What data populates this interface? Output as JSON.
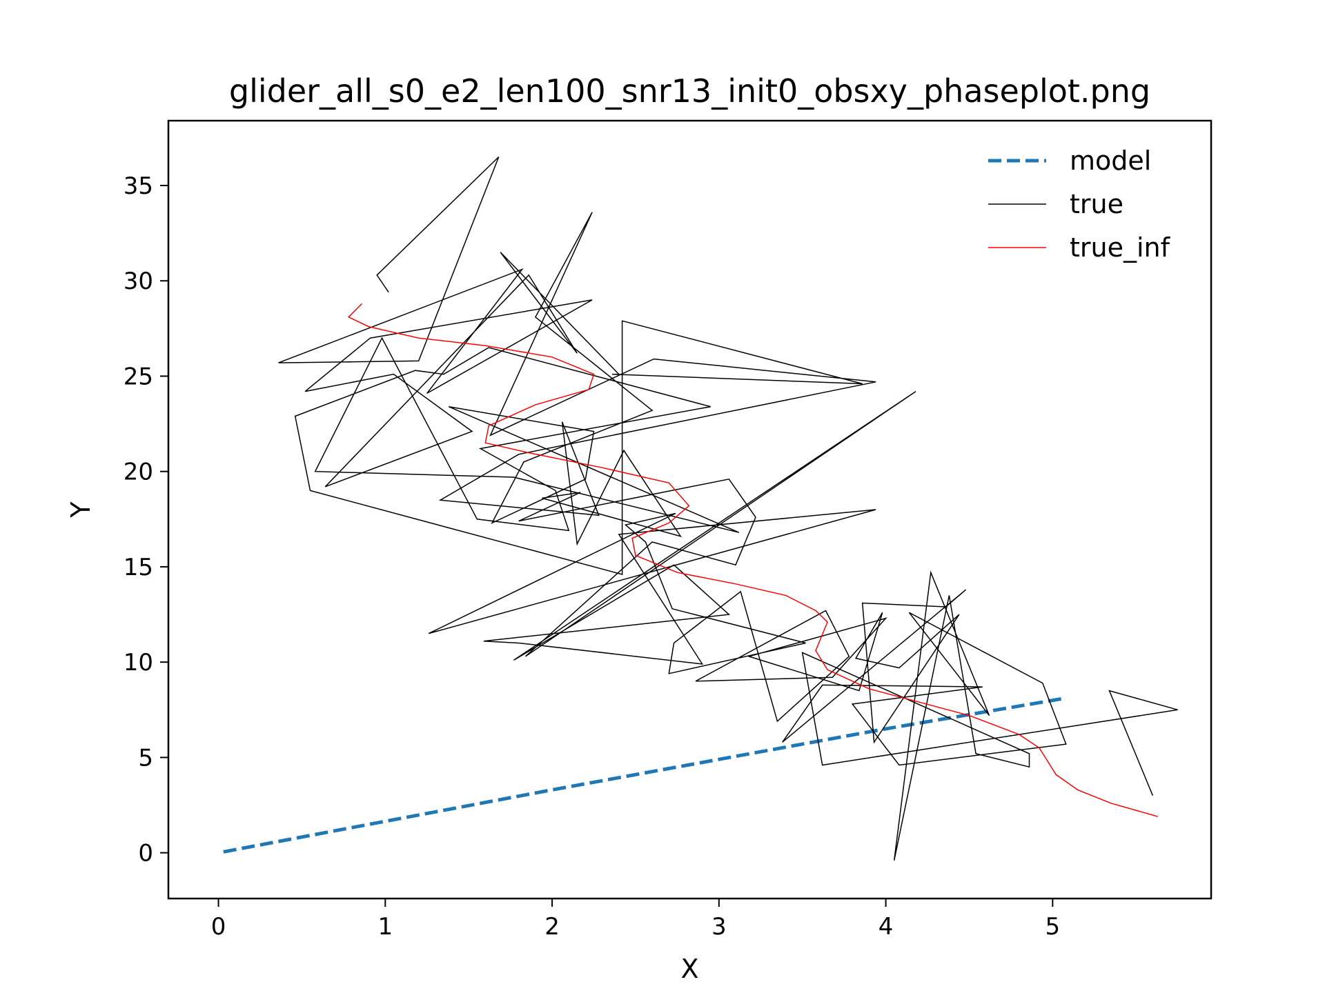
{
  "chart_data": {
    "type": "line",
    "title": "glider_all_s0_e2_len100_snr13_init0_obsxy_phaseplot.png",
    "xlabel": "X",
    "ylabel": "Y",
    "xlim": [
      -0.3,
      5.95
    ],
    "ylim": [
      -2.4,
      38.4
    ],
    "xticks": [
      0,
      1,
      2,
      3,
      4,
      5
    ],
    "yticks": [
      0,
      5,
      10,
      15,
      20,
      25,
      30,
      35
    ],
    "grid": false,
    "legend": {
      "position": "top-right",
      "entries": [
        "model",
        "true",
        "true_inf"
      ]
    },
    "series": [
      {
        "name": "model",
        "color": "#1f77b4",
        "dash": "dashed",
        "x": [
          0.03,
          1.0,
          2.0,
          3.0,
          4.0,
          5.07
        ],
        "y": [
          0.05,
          1.65,
          3.3,
          4.9,
          6.5,
          8.1
        ]
      },
      {
        "name": "true",
        "color": "#000000",
        "dash": "solid",
        "x": [
          1.02,
          0.95,
          1.68,
          1.2,
          0.36,
          1.82,
          1.25,
          2.24,
          0.91,
          0.52,
          1.05,
          1.52,
          0.64,
          1.86,
          2.15,
          1.69,
          2.4,
          2.36,
          3.86,
          2.42,
          2.42,
          0.55,
          0.46,
          1.18,
          1.35,
          1.62,
          2.95,
          1.57,
          2.02,
          2.1,
          1.55,
          0.98,
          0.58,
          1.77,
          3.12,
          1.38,
          2.25,
          2.2,
          1.64,
          1.83,
          2.6,
          1.9,
          2.24,
          1.63,
          2.61,
          3.94,
          1.8,
          1.33,
          2.28,
          2.06,
          2.15,
          2.43,
          2.77,
          1.94,
          2.17,
          1.8,
          3.06,
          3.22,
          3.1,
          2.6,
          1.84,
          4.18,
          1.77,
          2.73,
          3.06,
          1.59,
          1.8,
          2.9,
          2.4,
          3.94,
          1.26,
          2.74,
          2.44,
          2.56,
          2.72,
          3.52,
          2.7,
          2.73,
          3.13,
          3.35,
          3.78,
          3.64,
          2.86,
          3.68,
          4.0,
          3.18,
          3.84,
          3.98,
          3.82,
          4.08,
          4.44,
          3.93,
          3.86,
          4.36,
          4.48,
          3.38,
          3.62,
          4.58,
          3.8,
          4.08,
          5.08,
          4.94,
          4.14,
          4.62,
          4.27,
          4.05,
          4.38,
          4.54,
          4.86,
          4.86,
          3.5,
          3.62,
          5.75,
          5.34,
          5.6
        ],
        "y": [
          29.4,
          30.3,
          36.5,
          25.8,
          25.7,
          30.6,
          24.1,
          29.0,
          27.0,
          24.2,
          25.1,
          22.1,
          19.2,
          30.3,
          26.2,
          31.5,
          25.1,
          25.1,
          24.6,
          27.9,
          14.6,
          19.0,
          22.9,
          25.3,
          25.1,
          26.5,
          23.4,
          21.2,
          19.0,
          16.9,
          17.5,
          27.0,
          20.0,
          19.7,
          16.8,
          23.4,
          22.1,
          19.6,
          17.3,
          20.5,
          23.2,
          28.1,
          33.6,
          21.9,
          25.9,
          24.7,
          20.9,
          18.5,
          17.7,
          22.6,
          16.2,
          21.1,
          16.6,
          18.6,
          18.9,
          17.4,
          19.6,
          17.6,
          15.1,
          16.3,
          10.3,
          24.2,
          10.1,
          15.1,
          12.5,
          11.1,
          11.0,
          9.9,
          16.7,
          18.0,
          11.5,
          17.8,
          17.2,
          16.3,
          12.8,
          11.0,
          9.4,
          11.0,
          13.7,
          6.9,
          10.3,
          12.7,
          9.0,
          9.2,
          12.3,
          10.3,
          8.5,
          12.6,
          10.2,
          9.7,
          12.5,
          5.8,
          13.1,
          12.9,
          13.8,
          5.8,
          8.8,
          8.7,
          7.8,
          4.6,
          5.7,
          8.9,
          12.6,
          7.2,
          14.7,
          -0.4,
          13.5,
          5.2,
          4.5,
          5.2,
          10.5,
          4.6,
          7.5,
          8.5,
          3.0
        ]
      },
      {
        "name": "true_inf",
        "color": "#ff0000",
        "dash": "solid",
        "x": [
          0.86,
          0.78,
          0.9,
          1.2,
          1.6,
          2.0,
          2.25,
          2.22,
          1.9,
          1.62,
          1.6,
          1.85,
          2.3,
          2.7,
          2.82,
          2.7,
          2.48,
          2.5,
          2.75,
          3.1,
          3.4,
          3.58,
          3.65,
          3.58,
          3.65,
          3.9,
          4.2,
          4.5,
          4.8,
          4.92,
          5.02,
          5.15,
          5.35,
          5.63
        ],
        "y": [
          28.8,
          28.1,
          27.6,
          27.0,
          26.6,
          26.0,
          25.1,
          24.3,
          23.5,
          22.4,
          21.5,
          21.0,
          20.2,
          19.4,
          18.2,
          17.3,
          16.5,
          15.6,
          14.7,
          14.1,
          13.5,
          12.7,
          12.1,
          10.6,
          9.6,
          8.6,
          7.9,
          7.2,
          6.2,
          5.5,
          4.1,
          3.3,
          2.6,
          1.9
        ]
      }
    ]
  }
}
